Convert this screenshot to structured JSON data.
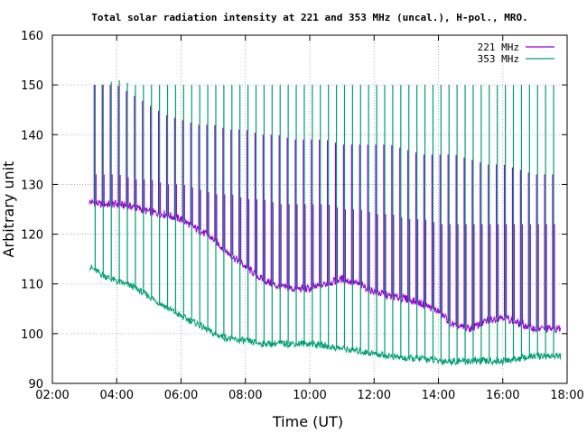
{
  "chart_data": {
    "type": "line",
    "title": "Total solar radiation intensity at 221 and 353 MHz (uncal.), H-pol., MRO.",
    "xlabel": "Time (UT)",
    "ylabel": "Arbitrary unit",
    "xlim": [
      2.0,
      18.0
    ],
    "ylim": [
      90,
      160
    ],
    "xticks": [
      "02:00",
      "04:00",
      "06:00",
      "08:00",
      "10:00",
      "12:00",
      "14:00",
      "16:00",
      "18:00"
    ],
    "yticks": [
      90,
      100,
      110,
      120,
      130,
      140,
      150,
      160
    ],
    "grid": true,
    "legend_position": "top-right",
    "series": [
      {
        "name": "221 MHz",
        "color": "#9400d3",
        "x": [
          3.15,
          3.5,
          4.0,
          4.5,
          5.0,
          5.5,
          6.0,
          6.5,
          7.0,
          7.5,
          8.0,
          8.5,
          9.0,
          9.5,
          10.0,
          10.5,
          11.0,
          11.5,
          12.0,
          12.5,
          13.0,
          13.5,
          14.0,
          14.5,
          15.0,
          15.5,
          16.0,
          16.5,
          17.0,
          17.5,
          17.8
        ],
        "y": [
          126.5,
          126.0,
          126.0,
          125.5,
          124.5,
          124.0,
          123.0,
          121.0,
          119.0,
          116.0,
          113.5,
          111.0,
          109.5,
          109.0,
          109.0,
          110.0,
          111.0,
          110.0,
          108.5,
          107.5,
          107.0,
          106.0,
          104.5,
          101.5,
          101.0,
          102.5,
          103.5,
          102.0,
          101.0,
          101.0,
          101.0
        ],
        "spike_peak": [
          150,
          150,
          150,
          148,
          146,
          144,
          143,
          142,
          142,
          141,
          141,
          140,
          140,
          139,
          139,
          139,
          138,
          138,
          138,
          138,
          137,
          136,
          136,
          136,
          135,
          134,
          134,
          133,
          132,
          132,
          132
        ],
        "spike_floor": [
          132,
          132,
          132,
          131,
          131,
          130,
          130,
          129,
          128,
          128,
          127,
          127,
          126,
          126,
          126,
          126,
          125,
          125,
          124,
          124,
          123,
          123,
          122,
          122,
          122,
          122,
          122,
          122,
          122,
          122,
          122
        ]
      },
      {
        "name": "353 MHz",
        "color": "#009e73",
        "x": [
          3.15,
          3.5,
          4.0,
          4.5,
          5.0,
          5.5,
          6.0,
          6.5,
          7.0,
          7.5,
          8.0,
          8.5,
          9.0,
          9.5,
          10.0,
          10.5,
          11.0,
          11.5,
          12.0,
          12.5,
          13.0,
          13.5,
          14.0,
          14.5,
          15.0,
          15.5,
          16.0,
          16.5,
          17.0,
          17.5,
          17.8
        ],
        "y": [
          113.5,
          112.0,
          110.5,
          109.5,
          107.5,
          105.5,
          103.5,
          102.0,
          100.0,
          99.0,
          98.5,
          98.0,
          98.0,
          98.0,
          98.0,
          97.5,
          97.0,
          96.5,
          96.0,
          95.5,
          95.0,
          95.0,
          94.5,
          94.5,
          94.5,
          94.5,
          94.5,
          95.0,
          95.5,
          95.5,
          95.5
        ],
        "spike_peak": [
          150,
          150,
          151,
          150,
          150,
          150,
          150,
          150,
          150,
          150,
          150,
          150,
          150,
          150,
          150,
          150,
          150,
          150,
          150,
          150,
          150,
          150,
          150,
          150,
          150,
          150,
          150,
          150,
          150,
          150,
          150
        ]
      }
    ]
  }
}
